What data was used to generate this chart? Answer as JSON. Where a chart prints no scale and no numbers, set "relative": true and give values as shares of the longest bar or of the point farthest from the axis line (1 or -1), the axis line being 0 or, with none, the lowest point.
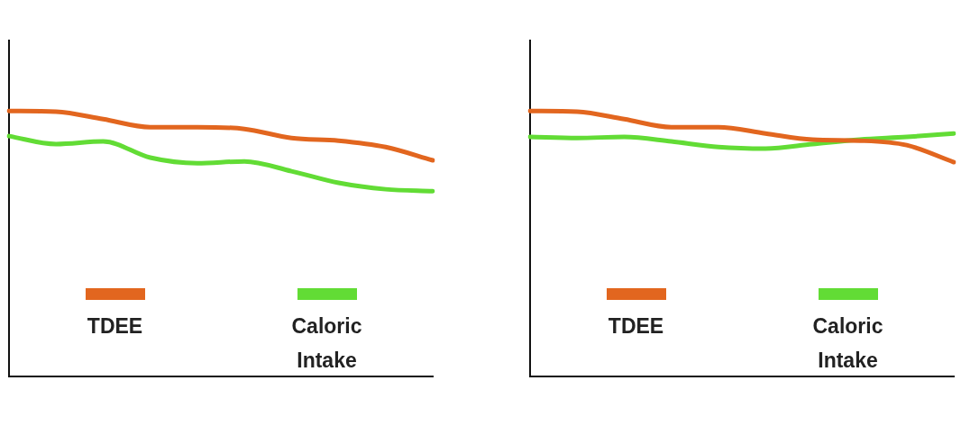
{
  "chart_data": [
    {
      "type": "line",
      "relative": true,
      "legend": "bottom",
      "tick_labels": false,
      "grid": false,
      "marker": "none",
      "categories": [
        null,
        null,
        null,
        null,
        null,
        null,
        null,
        null,
        null,
        null
      ],
      "series": [
        {
          "name": "TDEE",
          "color": "#e2661f",
          "values": [
            1.0,
            0.997,
            0.969,
            0.939,
            0.939,
            0.932,
            0.898,
            0.888,
            0.864,
            0.814
          ]
        },
        {
          "name": "Caloric Intake",
          "color": "#62dc35",
          "values": [
            0.905,
            0.875,
            0.885,
            0.824,
            0.803,
            0.81,
            0.773,
            0.729,
            0.705,
            0.698
          ]
        }
      ]
    },
    {
      "type": "line",
      "relative": true,
      "legend": "bottom",
      "tick_labels": false,
      "grid": false,
      "marker": "none",
      "categories": [
        null,
        null,
        null,
        null,
        null,
        null,
        null,
        null,
        null,
        null
      ],
      "series": [
        {
          "name": "TDEE",
          "color": "#e2661f",
          "values": [
            1.0,
            0.997,
            0.969,
            0.939,
            0.939,
            0.915,
            0.892,
            0.888,
            0.871,
            0.807
          ]
        },
        {
          "name": "Caloric Intake",
          "color": "#62dc35",
          "values": [
            0.902,
            0.898,
            0.902,
            0.885,
            0.864,
            0.858,
            0.875,
            0.892,
            0.902,
            0.915
          ]
        }
      ]
    }
  ]
}
